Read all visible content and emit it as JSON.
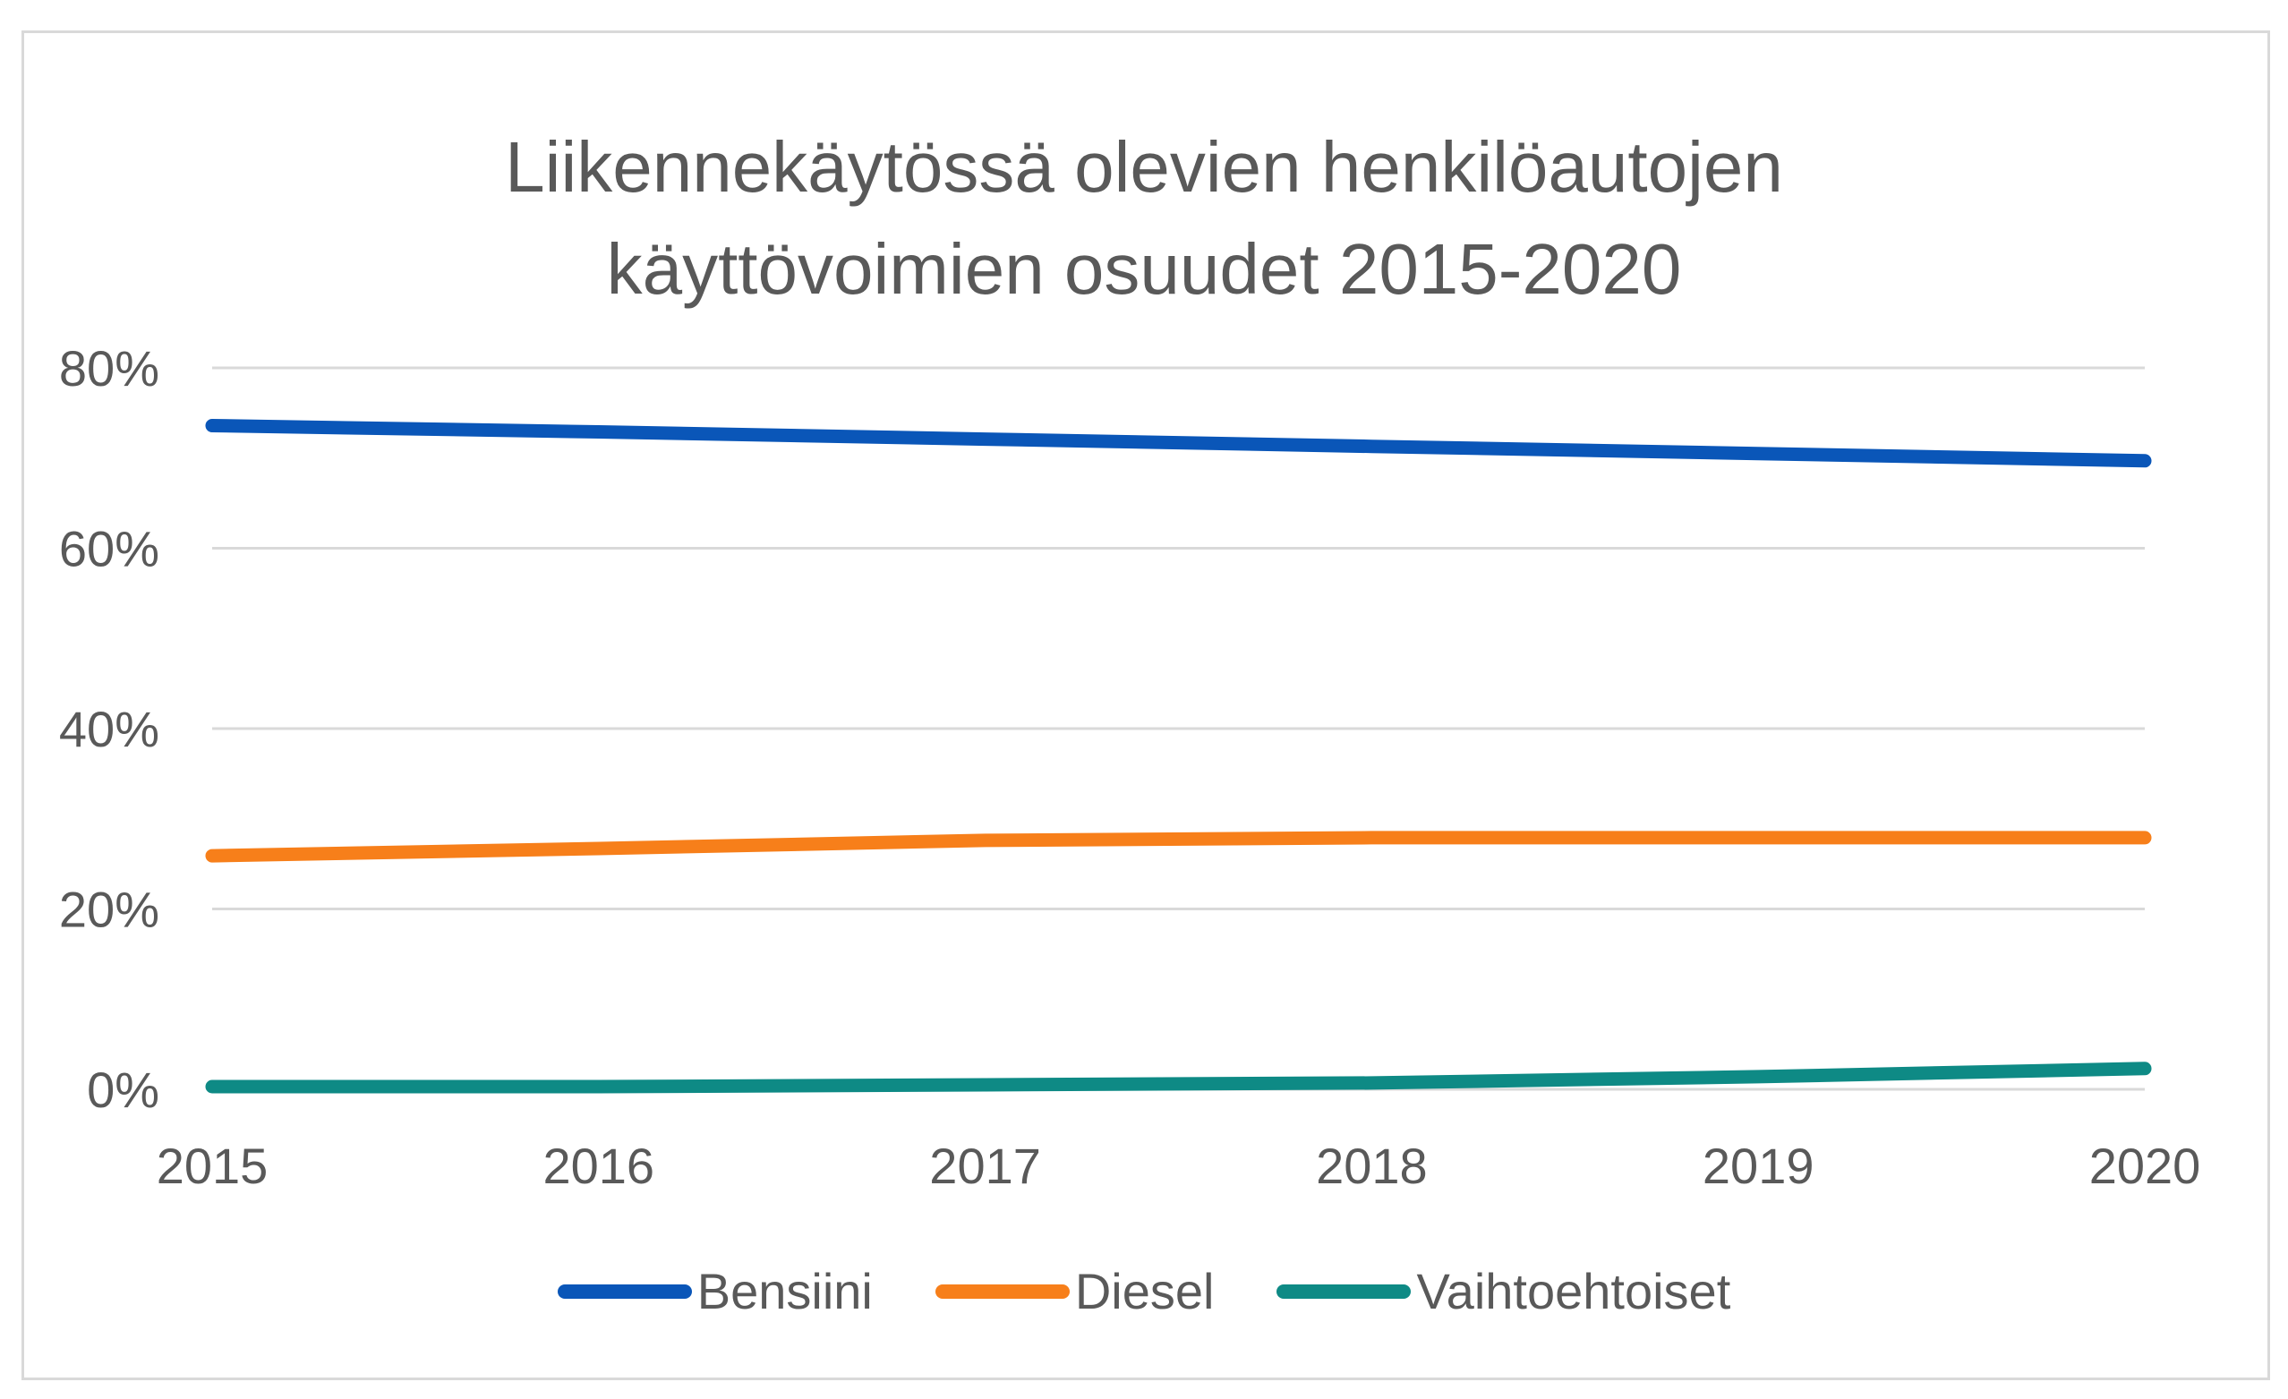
{
  "chart_data": {
    "type": "line",
    "title_lines": [
      "Liikennekäytössä olevien henkilöautojen",
      "käyttövoimien osuudet 2015-2020"
    ],
    "x": [
      "2015",
      "2016",
      "2017",
      "2018",
      "2019",
      "2020"
    ],
    "y_ticks": [
      "0%",
      "20%",
      "40%",
      "60%",
      "80%"
    ],
    "ylim": [
      0,
      80
    ],
    "y_unit": "%",
    "grid": true,
    "legend_position": "bottom",
    "series": [
      {
        "name": "Bensiini",
        "color": "#0a56b8",
        "values": [
          73.6,
          72.9,
          72.1,
          71.3,
          70.5,
          69.7
        ]
      },
      {
        "name": "Diesel",
        "color": "#f77f1a",
        "values": [
          25.9,
          26.7,
          27.6,
          27.9,
          27.9,
          27.9
        ]
      },
      {
        "name": "Vaihtoehtoiset",
        "color": "#0e8a85",
        "values": [
          0.3,
          0.3,
          0.5,
          0.7,
          1.4,
          2.3
        ]
      }
    ]
  }
}
